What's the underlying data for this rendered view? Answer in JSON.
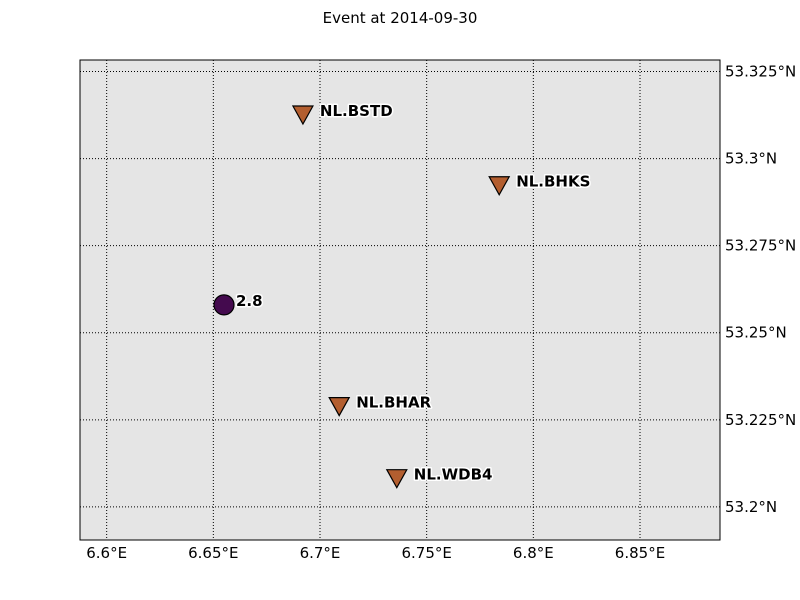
{
  "title": "Event at 2014-09-30",
  "chart_data": {
    "type": "scatter",
    "title": "Event at 2014-09-30",
    "xlim": [
      6.5875,
      6.8875
    ],
    "ylim": [
      53.1905,
      53.3283
    ],
    "xticks": [
      {
        "value": 6.6,
        "label": "6.6°E"
      },
      {
        "value": 6.65,
        "label": "6.65°E"
      },
      {
        "value": 6.7,
        "label": "6.7°E"
      },
      {
        "value": 6.75,
        "label": "6.75°E"
      },
      {
        "value": 6.8,
        "label": "6.8°E"
      },
      {
        "value": 6.85,
        "label": "6.85°E"
      }
    ],
    "yticks": [
      {
        "value": 53.325,
        "label": "53.325°N"
      },
      {
        "value": 53.3,
        "label": "53.3°N"
      },
      {
        "value": 53.275,
        "label": "53.275°N"
      },
      {
        "value": 53.25,
        "label": "53.25°N"
      },
      {
        "value": 53.225,
        "label": "53.225°N"
      },
      {
        "value": 53.2,
        "label": "53.2°N"
      }
    ],
    "grid": true,
    "background": "#e5e5e5",
    "stations": [
      {
        "name": "NL.BSTD",
        "lon": 6.692,
        "lat": 53.3125,
        "color": "#b35e2f"
      },
      {
        "name": "NL.BHKS",
        "lon": 6.784,
        "lat": 53.2922,
        "color": "#b35e2f"
      },
      {
        "name": "NL.BHAR",
        "lon": 6.709,
        "lat": 53.2288,
        "color": "#b35e2f"
      },
      {
        "name": "NL.WDB4",
        "lon": 6.736,
        "lat": 53.2081,
        "color": "#b35e2f"
      }
    ],
    "events": [
      {
        "label": "2.8",
        "lon": 6.655,
        "lat": 53.258,
        "color": "#440a4e"
      }
    ]
  }
}
